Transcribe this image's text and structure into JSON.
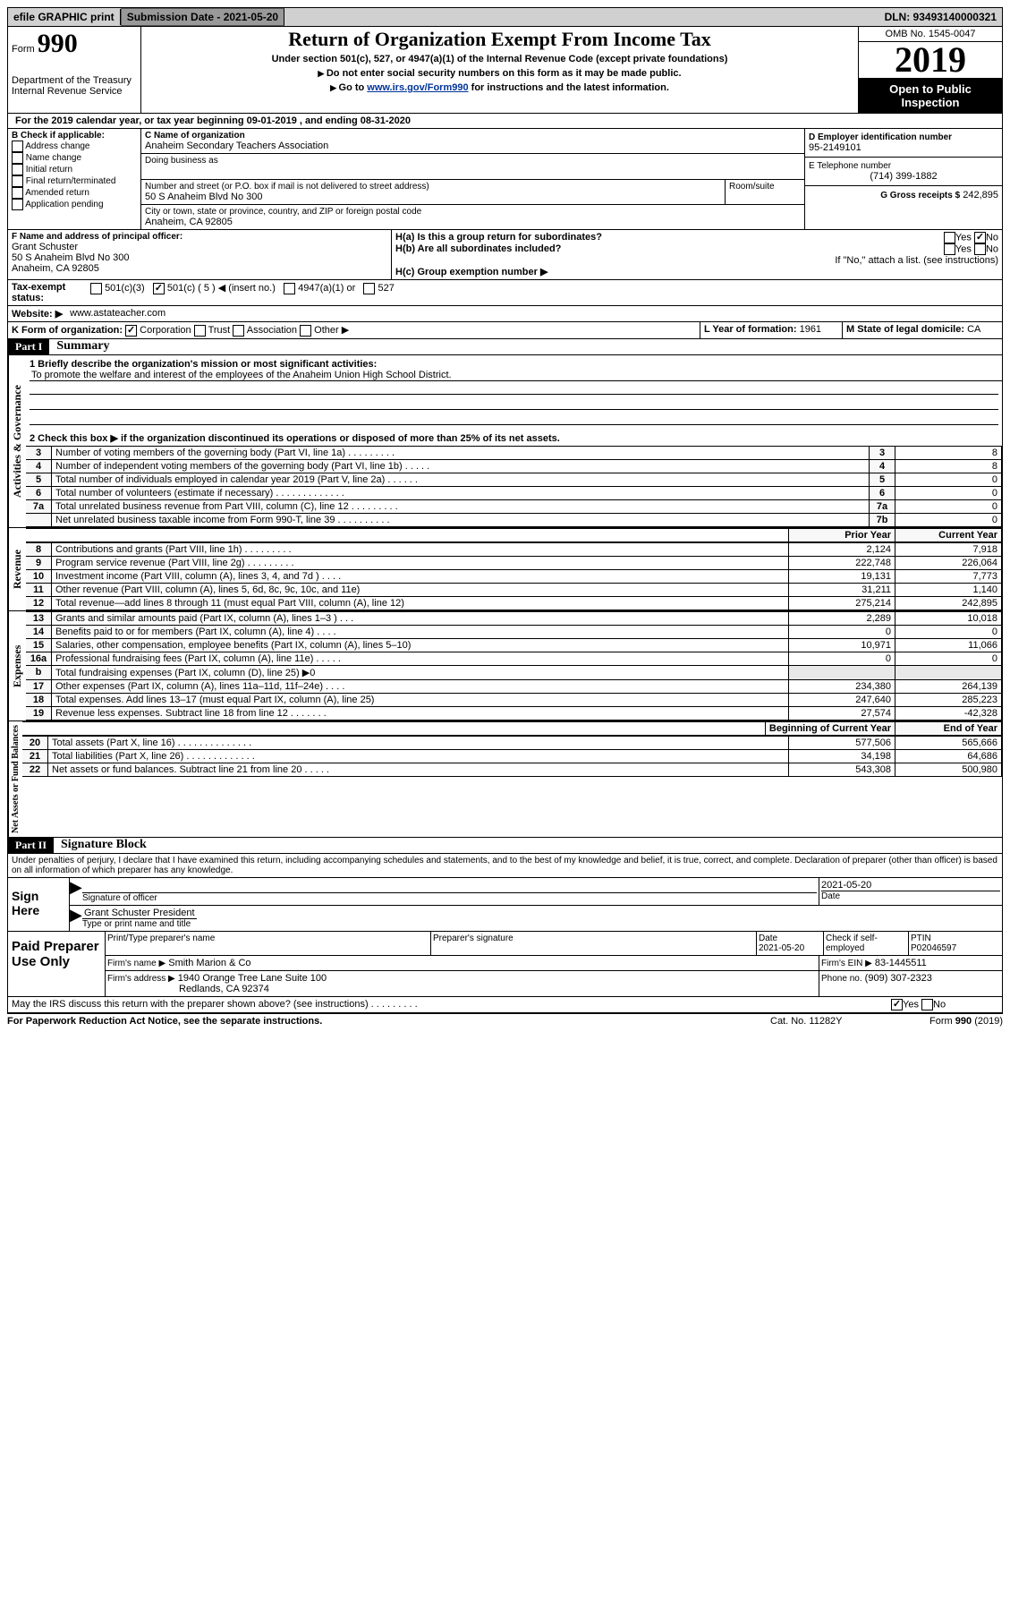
{
  "topbar": {
    "efile": "efile GRAPHIC print",
    "submission_label": "Submission Date - 2021-05-20",
    "dln": "DLN: 93493140000321"
  },
  "header": {
    "form_prefix": "Form",
    "form_number": "990",
    "title": "Return of Organization Exempt From Income Tax",
    "subtitle": "Under section 501(c), 527, or 4947(a)(1) of the Internal Revenue Code (except private foundations)",
    "note1": "Do not enter social security numbers on this form as it may be made public.",
    "note2_pre": "Go to ",
    "note2_link": "www.irs.gov/Form990",
    "note2_post": " for instructions and the latest information.",
    "dept": "Department of the Treasury\nInternal Revenue Service",
    "omb": "OMB No. 1545-0047",
    "year": "2019",
    "open_public": "Open to Public Inspection"
  },
  "sectionA": {
    "line": "For the 2019 calendar year, or tax year beginning 09-01-2019   , and ending 08-31-2020"
  },
  "sectionB": {
    "label": "B Check if applicable:",
    "items": [
      "Address change",
      "Name change",
      "Initial return",
      "Final return/terminated",
      "Amended return",
      "Application pending"
    ]
  },
  "sectionC": {
    "name_label": "C Name of organization",
    "name": "Anaheim Secondary Teachers Association",
    "dba_label": "Doing business as",
    "dba": "",
    "street_label": "Number and street (or P.O. box if mail is not delivered to street address)",
    "room_label": "Room/suite",
    "street": "50 S Anaheim Blvd No 300",
    "city_label": "City or town, state or province, country, and ZIP or foreign postal code",
    "city": "Anaheim, CA  92805"
  },
  "sectionD": {
    "label": "D Employer identification number",
    "value": "95-2149101"
  },
  "sectionE": {
    "label": "E Telephone number",
    "value": "(714) 399-1882"
  },
  "sectionG": {
    "label": "G Gross receipts $",
    "value": "242,895"
  },
  "sectionF": {
    "label": "F  Name and address of principal officer:",
    "name": "Grant Schuster",
    "street": "50 S Anaheim Blvd No 300",
    "city": "Anaheim, CA  92805"
  },
  "sectionH": {
    "a_label": "H(a)  Is this a group return for subordinates?",
    "b_label": "H(b)  Are all subordinates included?",
    "b_note": "If \"No,\" attach a list. (see instructions)",
    "c_label": "H(c)  Group exemption number ▶",
    "yes": "Yes",
    "no": "No"
  },
  "sectionI": {
    "label": "Tax-exempt status:",
    "a": "501(c)(3)",
    "b": "501(c) ( 5 ) ◀ (insert no.)",
    "c": "4947(a)(1) or",
    "d": "527"
  },
  "sectionJ": {
    "label": "Website: ▶",
    "value": "www.astateacher.com"
  },
  "sectionK": {
    "label": "K Form of organization:",
    "a": "Corporation",
    "b": "Trust",
    "c": "Association",
    "d": "Other ▶"
  },
  "sectionL": {
    "label": "L Year of formation:",
    "value": "1961"
  },
  "sectionM": {
    "label": "M State of legal domicile:",
    "value": "CA"
  },
  "partI": {
    "hdr": "Part I",
    "title": "Summary"
  },
  "summary": {
    "q1_label": "1  Briefly describe the organization's mission or most significant activities:",
    "q1_text": "To promote the welfare and interest of the employees of the Anaheim Union High School District.",
    "q2_label": "2   Check this box ▶        if the organization discontinued its operations or disposed of more than 25% of its net assets.",
    "lines_gov": [
      {
        "n": "3",
        "d": "Number of voting members of the governing body (Part VI, line 1a)  .    .    .    .    .    .    .    .    .",
        "k": "3",
        "v": "8"
      },
      {
        "n": "4",
        "d": "Number of independent voting members of the governing body (Part VI, line 1b)   .    .    .    .    .",
        "k": "4",
        "v": "8"
      },
      {
        "n": "5",
        "d": "Total number of individuals employed in calendar year 2019 (Part V, line 2a)  .    .    .    .    .    .",
        "k": "5",
        "v": "0"
      },
      {
        "n": "6",
        "d": "Total number of volunteers (estimate if necessary)  .    .    .    .    .    .    .    .    .    .    .    .    .",
        "k": "6",
        "v": "0"
      },
      {
        "n": "7a",
        "d": "Total unrelated business revenue from Part VIII, column (C), line 12  .    .    .    .    .    .    .    .    .",
        "k": "7a",
        "v": "0"
      },
      {
        "n": "",
        "d": "Net unrelated business taxable income from Form 990-T, line 39  .    .    .    .    .    .    .    .    .    .",
        "k": "7b",
        "v": "0"
      }
    ],
    "col_prior": "Prior Year",
    "col_current": "Current Year",
    "revenue": [
      {
        "n": "8",
        "d": "Contributions and grants (Part VIII, line 1h)  .    .    .    .    .    .    .    .    .",
        "p": "2,124",
        "c": "7,918"
      },
      {
        "n": "9",
        "d": "Program service revenue (Part VIII, line 2g)  .    .    .    .    .    .    .    .    .",
        "p": "222,748",
        "c": "226,064"
      },
      {
        "n": "10",
        "d": "Investment income (Part VIII, column (A), lines 3, 4, and 7d )  .    .    .    .",
        "p": "19,131",
        "c": "7,773"
      },
      {
        "n": "11",
        "d": "Other revenue (Part VIII, column (A), lines 5, 6d, 8c, 9c, 10c, and 11e)",
        "p": "31,211",
        "c": "1,140"
      },
      {
        "n": "12",
        "d": "Total revenue—add lines 8 through 11 (must equal Part VIII, column (A), line 12)",
        "p": "275,214",
        "c": "242,895"
      }
    ],
    "expenses": [
      {
        "n": "13",
        "d": "Grants and similar amounts paid (Part IX, column (A), lines 1–3 )   .    .    .",
        "p": "2,289",
        "c": "10,018"
      },
      {
        "n": "14",
        "d": "Benefits paid to or for members (Part IX, column (A), line 4)  .    .    .    .",
        "p": "0",
        "c": "0"
      },
      {
        "n": "15",
        "d": "Salaries, other compensation, employee benefits (Part IX, column (A), lines 5–10)",
        "p": "10,971",
        "c": "11,066"
      },
      {
        "n": "16a",
        "d": "Professional fundraising fees (Part IX, column (A), line 11e)  .    .    .    .    .",
        "p": "0",
        "c": "0"
      },
      {
        "n": "b",
        "d": "Total fundraising expenses (Part IX, column (D), line 25) ▶0",
        "p": "",
        "c": ""
      },
      {
        "n": "17",
        "d": "Other expenses (Part IX, column (A), lines 11a–11d, 11f–24e)  .    .    .    .",
        "p": "234,380",
        "c": "264,139"
      },
      {
        "n": "18",
        "d": "Total expenses. Add lines 13–17 (must equal Part IX, column (A), line 25)",
        "p": "247,640",
        "c": "285,223"
      },
      {
        "n": "19",
        "d": "Revenue less expenses. Subtract line 18 from line 12  .    .    .    .    .    .    .",
        "p": "27,574",
        "c": "-42,328"
      }
    ],
    "col_begin": "Beginning of Current Year",
    "col_end": "End of Year",
    "netassets": [
      {
        "n": "20",
        "d": "Total assets (Part X, line 16)  .    .    .    .    .    .    .    .    .    .    .    .    .    .",
        "p": "577,506",
        "c": "565,666"
      },
      {
        "n": "21",
        "d": "Total liabilities (Part X, line 26)  .    .    .    .    .    .    .    .    .    .    .    .    .",
        "p": "34,198",
        "c": "64,686"
      },
      {
        "n": "22",
        "d": "Net assets or fund balances. Subtract line 21 from line 20  .    .    .    .    .",
        "p": "543,308",
        "c": "500,980"
      }
    ],
    "vg_gov": "Activities & Governance",
    "vg_rev": "Revenue",
    "vg_exp": "Expenses",
    "vg_net": "Net Assets or Fund Balances"
  },
  "partII": {
    "hdr": "Part II",
    "title": "Signature Block",
    "decl": "Under penalties of perjury, I declare that I have examined this return, including accompanying schedules and statements, and to the best of my knowledge and belief, it is true, correct, and complete. Declaration of preparer (other than officer) is based on all information of which preparer has any knowledge."
  },
  "sign": {
    "sign_here": "Sign Here",
    "sig_label": "Signature of officer",
    "date_label": "Date",
    "date": "2021-05-20",
    "name": "Grant Schuster President",
    "name_label": "Type or print name and title"
  },
  "preparer": {
    "title": "Paid Preparer Use Only",
    "print_label": "Print/Type preparer's name",
    "sig_label": "Preparer's signature",
    "date_label": "Date",
    "date": "2021-05-20",
    "check_label": "Check        if self-employed",
    "ptin_label": "PTIN",
    "ptin": "P02046597",
    "firm_name_label": "Firm's name    ▶",
    "firm_name": "Smith Marion & Co",
    "firm_ein_label": "Firm's EIN ▶",
    "firm_ein": "83-1445511",
    "firm_addr_label": "Firm's address ▶",
    "firm_addr": "1940 Orange Tree Lane Suite 100",
    "firm_city": "Redlands, CA  92374",
    "phone_label": "Phone no.",
    "phone": "(909) 307-2323"
  },
  "footer": {
    "discuss": "May the IRS discuss this return with the preparer shown above? (see instructions)   .    .    .    .    .    .    .    .    .",
    "yes": "Yes",
    "no": "No",
    "paperwork": "For Paperwork Reduction Act Notice, see the separate instructions.",
    "cat": "Cat. No. 11282Y",
    "form": "Form 990 (2019)"
  }
}
